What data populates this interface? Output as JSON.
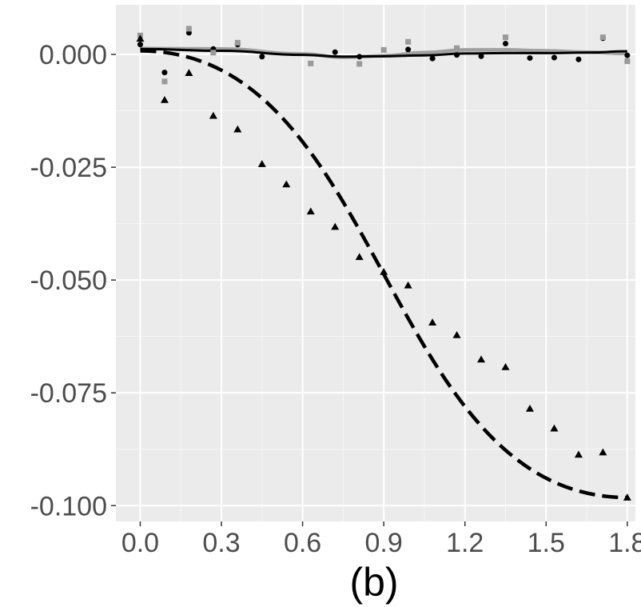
{
  "chart_data": {
    "type": "scatter",
    "title": "",
    "caption": "(b)",
    "xlabel": "",
    "ylabel": "",
    "xlim": [
      -0.09,
      1.83
    ],
    "ylim": [
      -0.1035,
      0.011
    ],
    "x_ticks": [
      0.0,
      0.3,
      0.6,
      0.9,
      1.2,
      1.5,
      1.8
    ],
    "x_tick_labels": [
      "0.0",
      "0.3",
      "0.6",
      "0.9",
      "1.2",
      "1.5",
      "1.8"
    ],
    "y_ticks": [
      0.0,
      -0.025,
      -0.05,
      -0.075,
      -0.1
    ],
    "y_tick_labels": [
      "0.000",
      "-0.025",
      "-0.050",
      "-0.075",
      "-0.100"
    ],
    "grid": true,
    "legend": "none",
    "series": [
      {
        "name": "circles",
        "marker": "circle",
        "color": "#000000",
        "line": "solid",
        "line_color": "#000000",
        "x": [
          0.0,
          0.09,
          0.18,
          0.27,
          0.36,
          0.45,
          0.72,
          0.81,
          0.99,
          1.08,
          1.17,
          1.26,
          1.35,
          1.44,
          1.53,
          1.62,
          1.71,
          1.8
        ],
        "y": [
          0.0022,
          -0.004,
          0.0048,
          0.0012,
          0.0022,
          -0.0005,
          0.0005,
          -0.0005,
          0.0011,
          -0.0009,
          -0.0001,
          -0.0004,
          0.0024,
          -0.0008,
          -0.0007,
          -0.0011,
          0.0036,
          -0.0002
        ],
        "fit": {
          "x": [
            0.0,
            0.3,
            0.6,
            0.75,
            0.9,
            1.05,
            1.2,
            1.35,
            1.5,
            1.65,
            1.8
          ],
          "y": [
            0.0012,
            0.0008,
            -0.0001,
            -0.0005,
            -0.0004,
            -0.0002,
            0.0002,
            0.0003,
            0.0003,
            0.0004,
            0.0007
          ]
        }
      },
      {
        "name": "squares",
        "marker": "square",
        "color": "#9a9a9a",
        "line": "solid",
        "line_color": "#a0a0a0",
        "x": [
          0.0,
          0.09,
          0.18,
          0.27,
          0.36,
          0.63,
          0.81,
          0.9,
          0.99,
          1.17,
          1.35,
          1.71,
          1.8
        ],
        "y": [
          0.0042,
          -0.006,
          0.0057,
          0.0004,
          0.0026,
          -0.002,
          -0.0021,
          0.001,
          0.0028,
          0.0014,
          0.0038,
          0.0038,
          -0.0015
        ],
        "fit": {
          "x": [
            0.0,
            0.3,
            0.6,
            0.75,
            0.9,
            1.05,
            1.2,
            1.35,
            1.5,
            1.65,
            1.8
          ],
          "y": [
            0.0013,
            0.0012,
            0.0001,
            -0.0006,
            -0.0003,
            0.0004,
            0.001,
            0.001,
            0.0008,
            0.0005,
            0.0002
          ]
        }
      },
      {
        "name": "triangles",
        "marker": "triangle",
        "color": "#000000",
        "line": "dashed",
        "line_color": "#000000",
        "x": [
          0.0,
          0.09,
          0.18,
          0.27,
          0.36,
          0.45,
          0.54,
          0.63,
          0.72,
          0.81,
          0.9,
          0.99,
          1.08,
          1.17,
          1.26,
          1.35,
          1.44,
          1.53,
          1.62,
          1.71,
          1.8
        ],
        "y": [
          0.0035,
          -0.0101,
          -0.0041,
          -0.0136,
          -0.0166,
          -0.0243,
          -0.0288,
          -0.0348,
          -0.0382,
          -0.0449,
          -0.0482,
          -0.0512,
          -0.0594,
          -0.0622,
          -0.0676,
          -0.0693,
          -0.0785,
          -0.0829,
          -0.0887,
          -0.0882,
          -0.0982
        ],
        "fit": {
          "x": [
            0.0,
            1.8
          ],
          "y": [
            0.0008,
            -0.0982
          ]
        }
      }
    ]
  }
}
